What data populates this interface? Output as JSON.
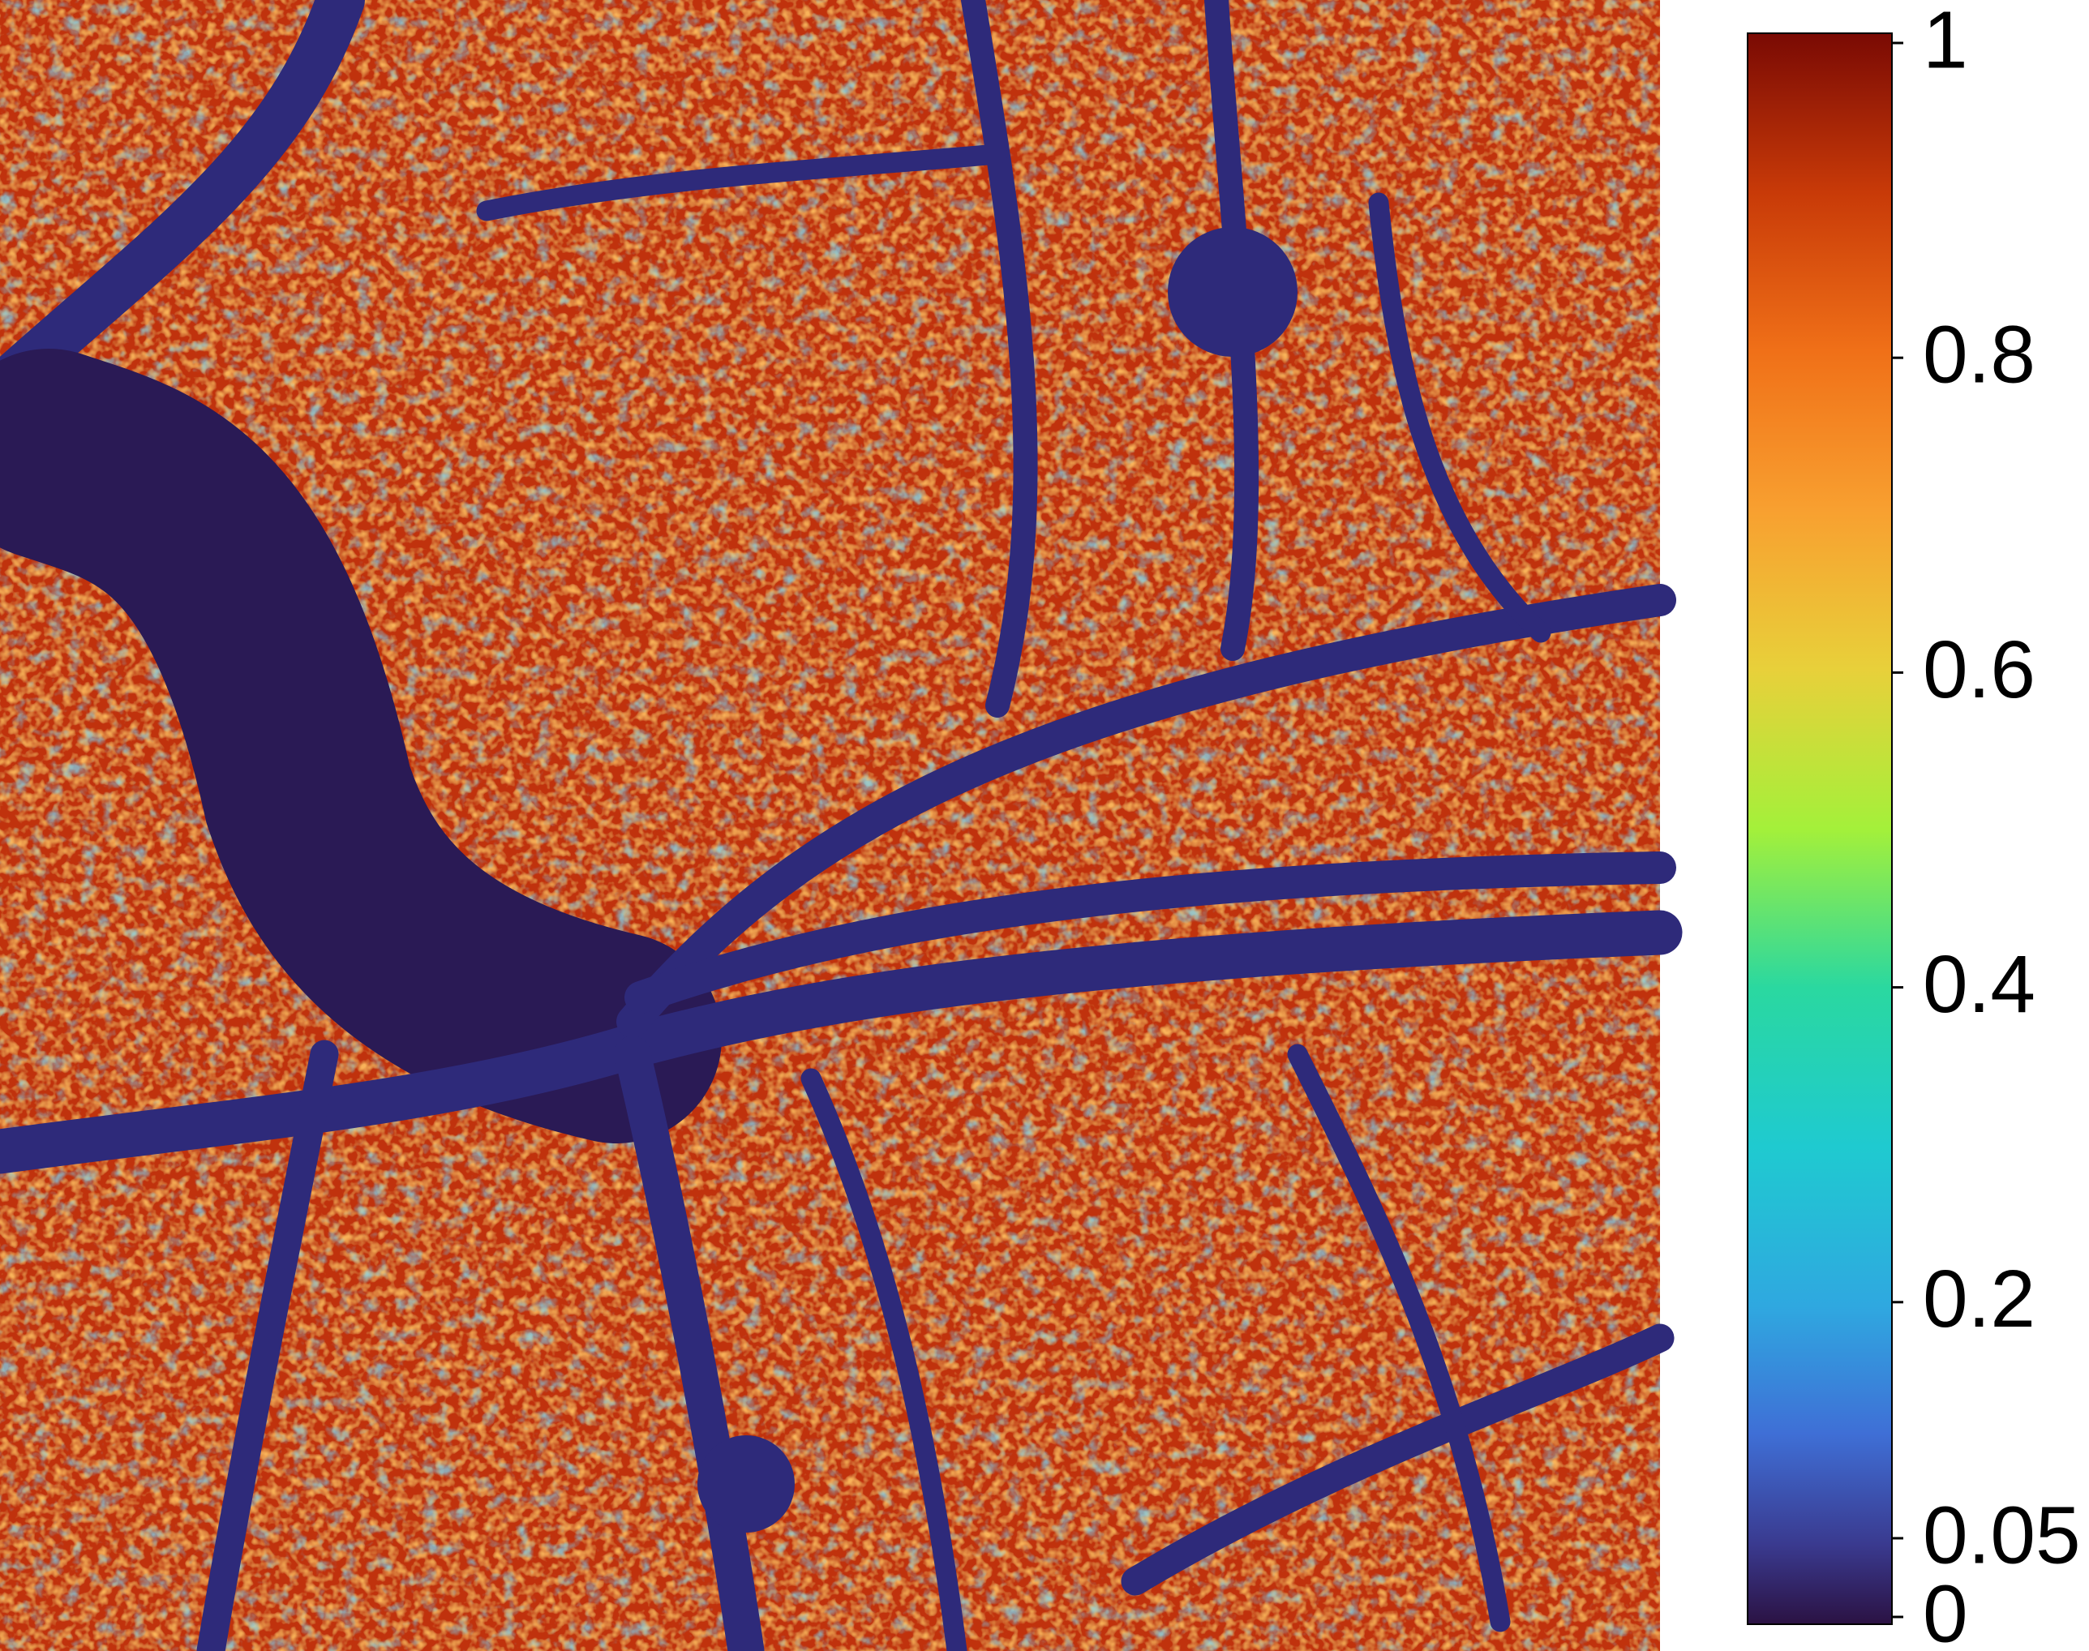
{
  "chart_data": {
    "type": "heatmap",
    "colorbar": {
      "lim": [
        0,
        1
      ],
      "ticks": [
        0,
        0.05,
        0.2,
        0.4,
        0.6,
        0.8,
        1
      ]
    }
  }
}
